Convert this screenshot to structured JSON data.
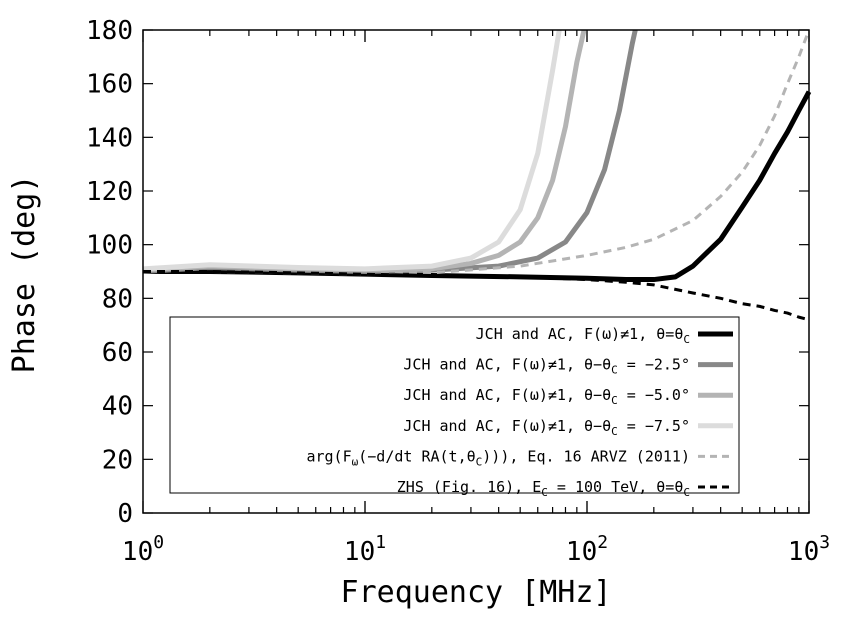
{
  "chart_data": {
    "type": "line",
    "xlabel": "Frequency [MHz]",
    "ylabel": "Phase (deg)",
    "xscale": "log",
    "xlim": [
      1,
      1000
    ],
    "ylim": [
      0,
      180
    ],
    "x_ticks": [
      {
        "value": 1,
        "base": "10",
        "exp": "0"
      },
      {
        "value": 10,
        "base": "10",
        "exp": "1"
      },
      {
        "value": 100,
        "base": "10",
        "exp": "2"
      },
      {
        "value": 1000,
        "base": "10",
        "exp": "3"
      }
    ],
    "y_ticks": [
      0,
      20,
      40,
      60,
      80,
      100,
      120,
      140,
      160,
      180
    ],
    "legend_placement": "bottom-right",
    "series": [
      {
        "name": "JCH and AC, F(ω)≠1, θ=θ_C",
        "color": "#000000",
        "style": "solid",
        "width": 5,
        "x": [
          1,
          2,
          5,
          10,
          20,
          50,
          100,
          150,
          200,
          250,
          300,
          400,
          500,
          600,
          700,
          800,
          900,
          1000
        ],
        "y": [
          90,
          90,
          89.5,
          89,
          88.5,
          88,
          87.5,
          87,
          87,
          88,
          92,
          102,
          114,
          124,
          134,
          142,
          150,
          157
        ]
      },
      {
        "name": "JCH and AC, F(ω)≠1, θ−θ_C = −2.5°",
        "color": "#888888",
        "style": "solid",
        "width": 5,
        "x": [
          1,
          2,
          5,
          10,
          20,
          40,
          60,
          80,
          100,
          120,
          140,
          160,
          165
        ],
        "y": [
          90,
          91.5,
          90.5,
          90,
          90.5,
          92,
          95,
          101,
          112,
          128,
          150,
          175,
          180
        ]
      },
      {
        "name": "JCH and AC, F(ω)≠1, θ−θ_C = −5.0°",
        "color": "#b4b4b4",
        "style": "solid",
        "width": 5,
        "x": [
          1,
          2,
          5,
          10,
          20,
          30,
          40,
          50,
          60,
          70,
          80,
          90,
          97
        ],
        "y": [
          90.5,
          92,
          91,
          90.5,
          91,
          93,
          96,
          101,
          110,
          124,
          144,
          168,
          180
        ]
      },
      {
        "name": "JCH and AC, F(ω)≠1, θ−θ_C = −7.5°",
        "color": "#dcdcdc",
        "style": "solid",
        "width": 5,
        "x": [
          1,
          2,
          5,
          10,
          20,
          30,
          40,
          50,
          60,
          70,
          75
        ],
        "y": [
          91,
          92.5,
          91.5,
          91,
          92,
          95,
          101,
          113,
          134,
          165,
          180
        ]
      },
      {
        "name": "arg(F_ω(−d/dt RA(t,θ_C))), Eq. 16 ARVZ (2011)",
        "color": "#b4b4b4",
        "style": "dashed",
        "width": 3,
        "x": [
          1,
          2,
          5,
          10,
          20,
          50,
          100,
          150,
          200,
          300,
          400,
          500,
          600,
          700,
          800,
          900,
          1000
        ],
        "y": [
          90,
          90,
          89.5,
          89,
          89.5,
          92,
          96,
          99,
          102,
          109,
          118,
          127,
          137,
          148,
          160,
          170,
          180
        ]
      },
      {
        "name": "ZHS (Fig. 16), E_C = 100 TeV, θ=θ_C",
        "color": "#000000",
        "style": "dashed",
        "width": 3,
        "x": [
          1,
          2,
          5,
          10,
          20,
          50,
          100,
          150,
          200,
          300,
          400,
          500,
          600,
          700,
          800,
          900,
          1000
        ],
        "y": [
          90,
          90,
          89.5,
          89,
          88.5,
          88,
          87,
          86,
          85,
          82,
          80,
          78,
          77,
          75.5,
          74.5,
          73,
          72
        ]
      }
    ]
  },
  "legend": {
    "entries": [
      {
        "label": "JCH and AC, F(ω)≠1, θ=θ",
        "sub": "C",
        "tail": ""
      },
      {
        "label": "JCH and AC, F(ω)≠1, θ−θ",
        "sub": "C",
        "tail": " = −2.5°"
      },
      {
        "label": "JCH and AC, F(ω)≠1, θ−θ",
        "sub": "C",
        "tail": " = −5.0°"
      },
      {
        "label": "JCH and AC, F(ω)≠1, θ−θ",
        "sub": "C",
        "tail": " = −7.5°"
      },
      {
        "label": "arg(F",
        "sub": "ω",
        "tail": "(−d/dt RA(t,θ",
        "sub2": "C",
        "tail2": "))), Eq. 16 ARVZ (2011)"
      },
      {
        "label": "ZHS (Fig. 16), E",
        "sub": "C",
        "tail": " = 100 TeV, θ=θ",
        "sub2": "C",
        "tail2": ""
      }
    ]
  }
}
